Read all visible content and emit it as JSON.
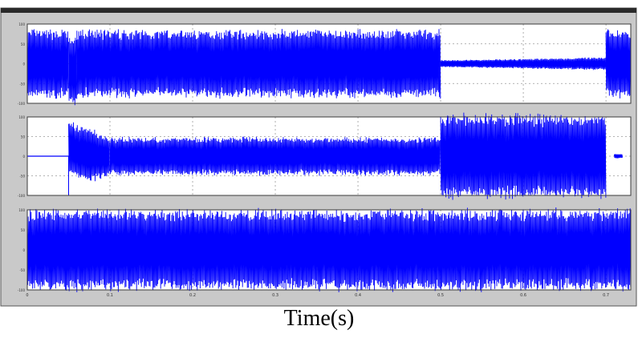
{
  "chart_data": [
    {
      "type": "line",
      "series": [
        {
          "name": "",
          "color": "#0000ff"
        }
      ],
      "xlim": [
        0,
        0.73
      ],
      "ylim": [
        -1,
        1
      ],
      "grid": true,
      "envelope": [
        {
          "x": [
            0,
            0.05
          ],
          "upper": 0.8,
          "lower": -0.8
        },
        {
          "x": [
            0.05,
            0.06
          ],
          "upper": 0.6,
          "lower": -1.0
        },
        {
          "x": [
            0.06,
            0.5
          ],
          "upper": 0.8,
          "lower": -0.8
        },
        {
          "x": [
            0.5,
            0.7
          ],
          "upper": 0.15,
          "lower": -0.15
        },
        {
          "x": [
            0.7,
            0.73
          ],
          "upper": 0.8,
          "lower": -0.8
        }
      ]
    },
    {
      "type": "line",
      "series": [
        {
          "name": "",
          "color": "#0000ff"
        }
      ],
      "xlim": [
        0,
        0.73
      ],
      "ylim": [
        -1,
        1
      ],
      "grid": true,
      "envelope": [
        {
          "x": [
            0,
            0.05
          ],
          "upper": 0.0,
          "lower": 0.0
        },
        {
          "x": [
            0.05,
            0.1
          ],
          "upper": 0.9,
          "lower": -0.6
        },
        {
          "x": [
            0.1,
            0.5
          ],
          "upper": 0.45,
          "lower": -0.45
        },
        {
          "x": [
            0.5,
            0.7
          ],
          "upper": 1.0,
          "lower": -1.0
        },
        {
          "x": [
            0.71,
            0.72
          ],
          "upper": 0.05,
          "lower": -0.05
        }
      ]
    },
    {
      "type": "line",
      "series": [
        {
          "name": "",
          "color": "#0000ff"
        }
      ],
      "xlim": [
        0,
        0.73
      ],
      "ylim": [
        -1,
        1
      ],
      "grid": true,
      "envelope": [
        {
          "x": [
            0,
            0.73
          ],
          "upper": 0.95,
          "lower": -0.95
        }
      ]
    }
  ],
  "axis": {
    "x_ticks": [
      "0",
      "0.1",
      "0.2",
      "0.3",
      "0.4",
      "0.5",
      "0.6",
      "0.7"
    ],
    "x_tick_values": [
      0,
      0.1,
      0.2,
      0.3,
      0.4,
      0.5,
      0.6,
      0.7
    ],
    "y_ticks": [
      "100",
      "50",
      "0",
      "-50",
      "-100"
    ],
    "y_tick_values": [
      1,
      0.5,
      0,
      -0.5,
      -1
    ],
    "xlabel": "Time(s)"
  },
  "colors": {
    "trace": "#0000ff",
    "frame": "#3a3a3a",
    "grid": "#9a9a9a",
    "background": "#ffffff"
  }
}
